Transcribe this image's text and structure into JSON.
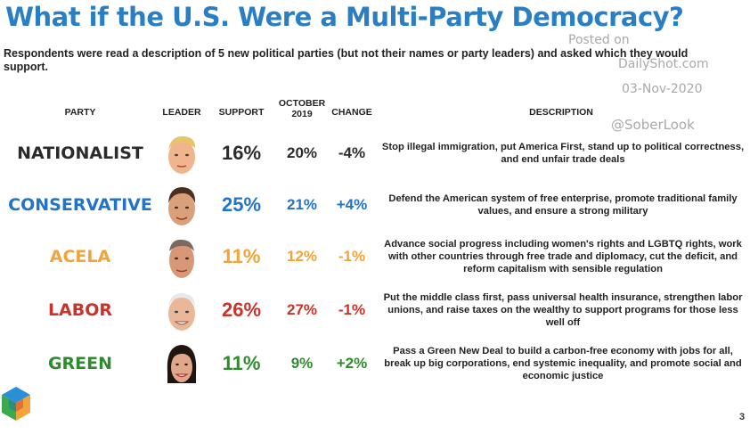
{
  "title": "What if the U.S. Were a Multi-Party Democracy?",
  "subtitle": "Respondents were read a description of 5 new political parties (but not their names or party leaders) and asked which they would support.",
  "watermark": {
    "posted_on": "Posted on",
    "site": "DailyShot.com",
    "date": "03-Nov-2020",
    "handle": "@SoberLook"
  },
  "page_number": "3",
  "colors": {
    "nationalist": "#2b2b2b",
    "conservative": "#2374c6",
    "acela": "#f2a33a",
    "labor": "#c8332b",
    "green": "#2e8b2e",
    "title": "#2a7fc4"
  },
  "chart_data": {
    "type": "table",
    "title": "What if the U.S. Were a Multi-Party Democracy?",
    "columns": {
      "party": "PARTY",
      "leader": "LEADER",
      "support": "SUPPORT",
      "october_line1": "OCTOBER",
      "october_line2": "2019",
      "change": "CHANGE",
      "description": "DESCRIPTION"
    },
    "rows": [
      {
        "party": "NATIONALIST",
        "support": "16%",
        "october_2019": "20%",
        "change": "-4%",
        "description": "Stop illegal immigration, put America First, stand up to political correctness, and end unfair trade deals"
      },
      {
        "party": "CONSERVATIVE",
        "support": "25%",
        "october_2019": "21%",
        "change": "+4%",
        "description": "Defend the American system of free enterprise, promote traditional family values, and ensure a strong military"
      },
      {
        "party": "ACELA",
        "support": "11%",
        "october_2019": "12%",
        "change": "-1%",
        "description": "Advance social progress including women's rights and LGBTQ rights, work with other countries through free trade and diplomacy, cut the deficit, and reform capitalism with sensible regulation"
      },
      {
        "party": "LABOR",
        "support": "26%",
        "october_2019": "27%",
        "change": "-1%",
        "description": "Put the middle class first, pass universal health insurance, strengthen labor unions, and raise taxes on the wealthy to support programs for those less well off"
      },
      {
        "party": "GREEN",
        "support": "11%",
        "october_2019": "9%",
        "change": "+2%",
        "description": "Pass a Green New Deal to build a carbon-free economy with jobs for all, break up big corporations, end systemic inequality, and promote social and economic justice"
      }
    ]
  }
}
